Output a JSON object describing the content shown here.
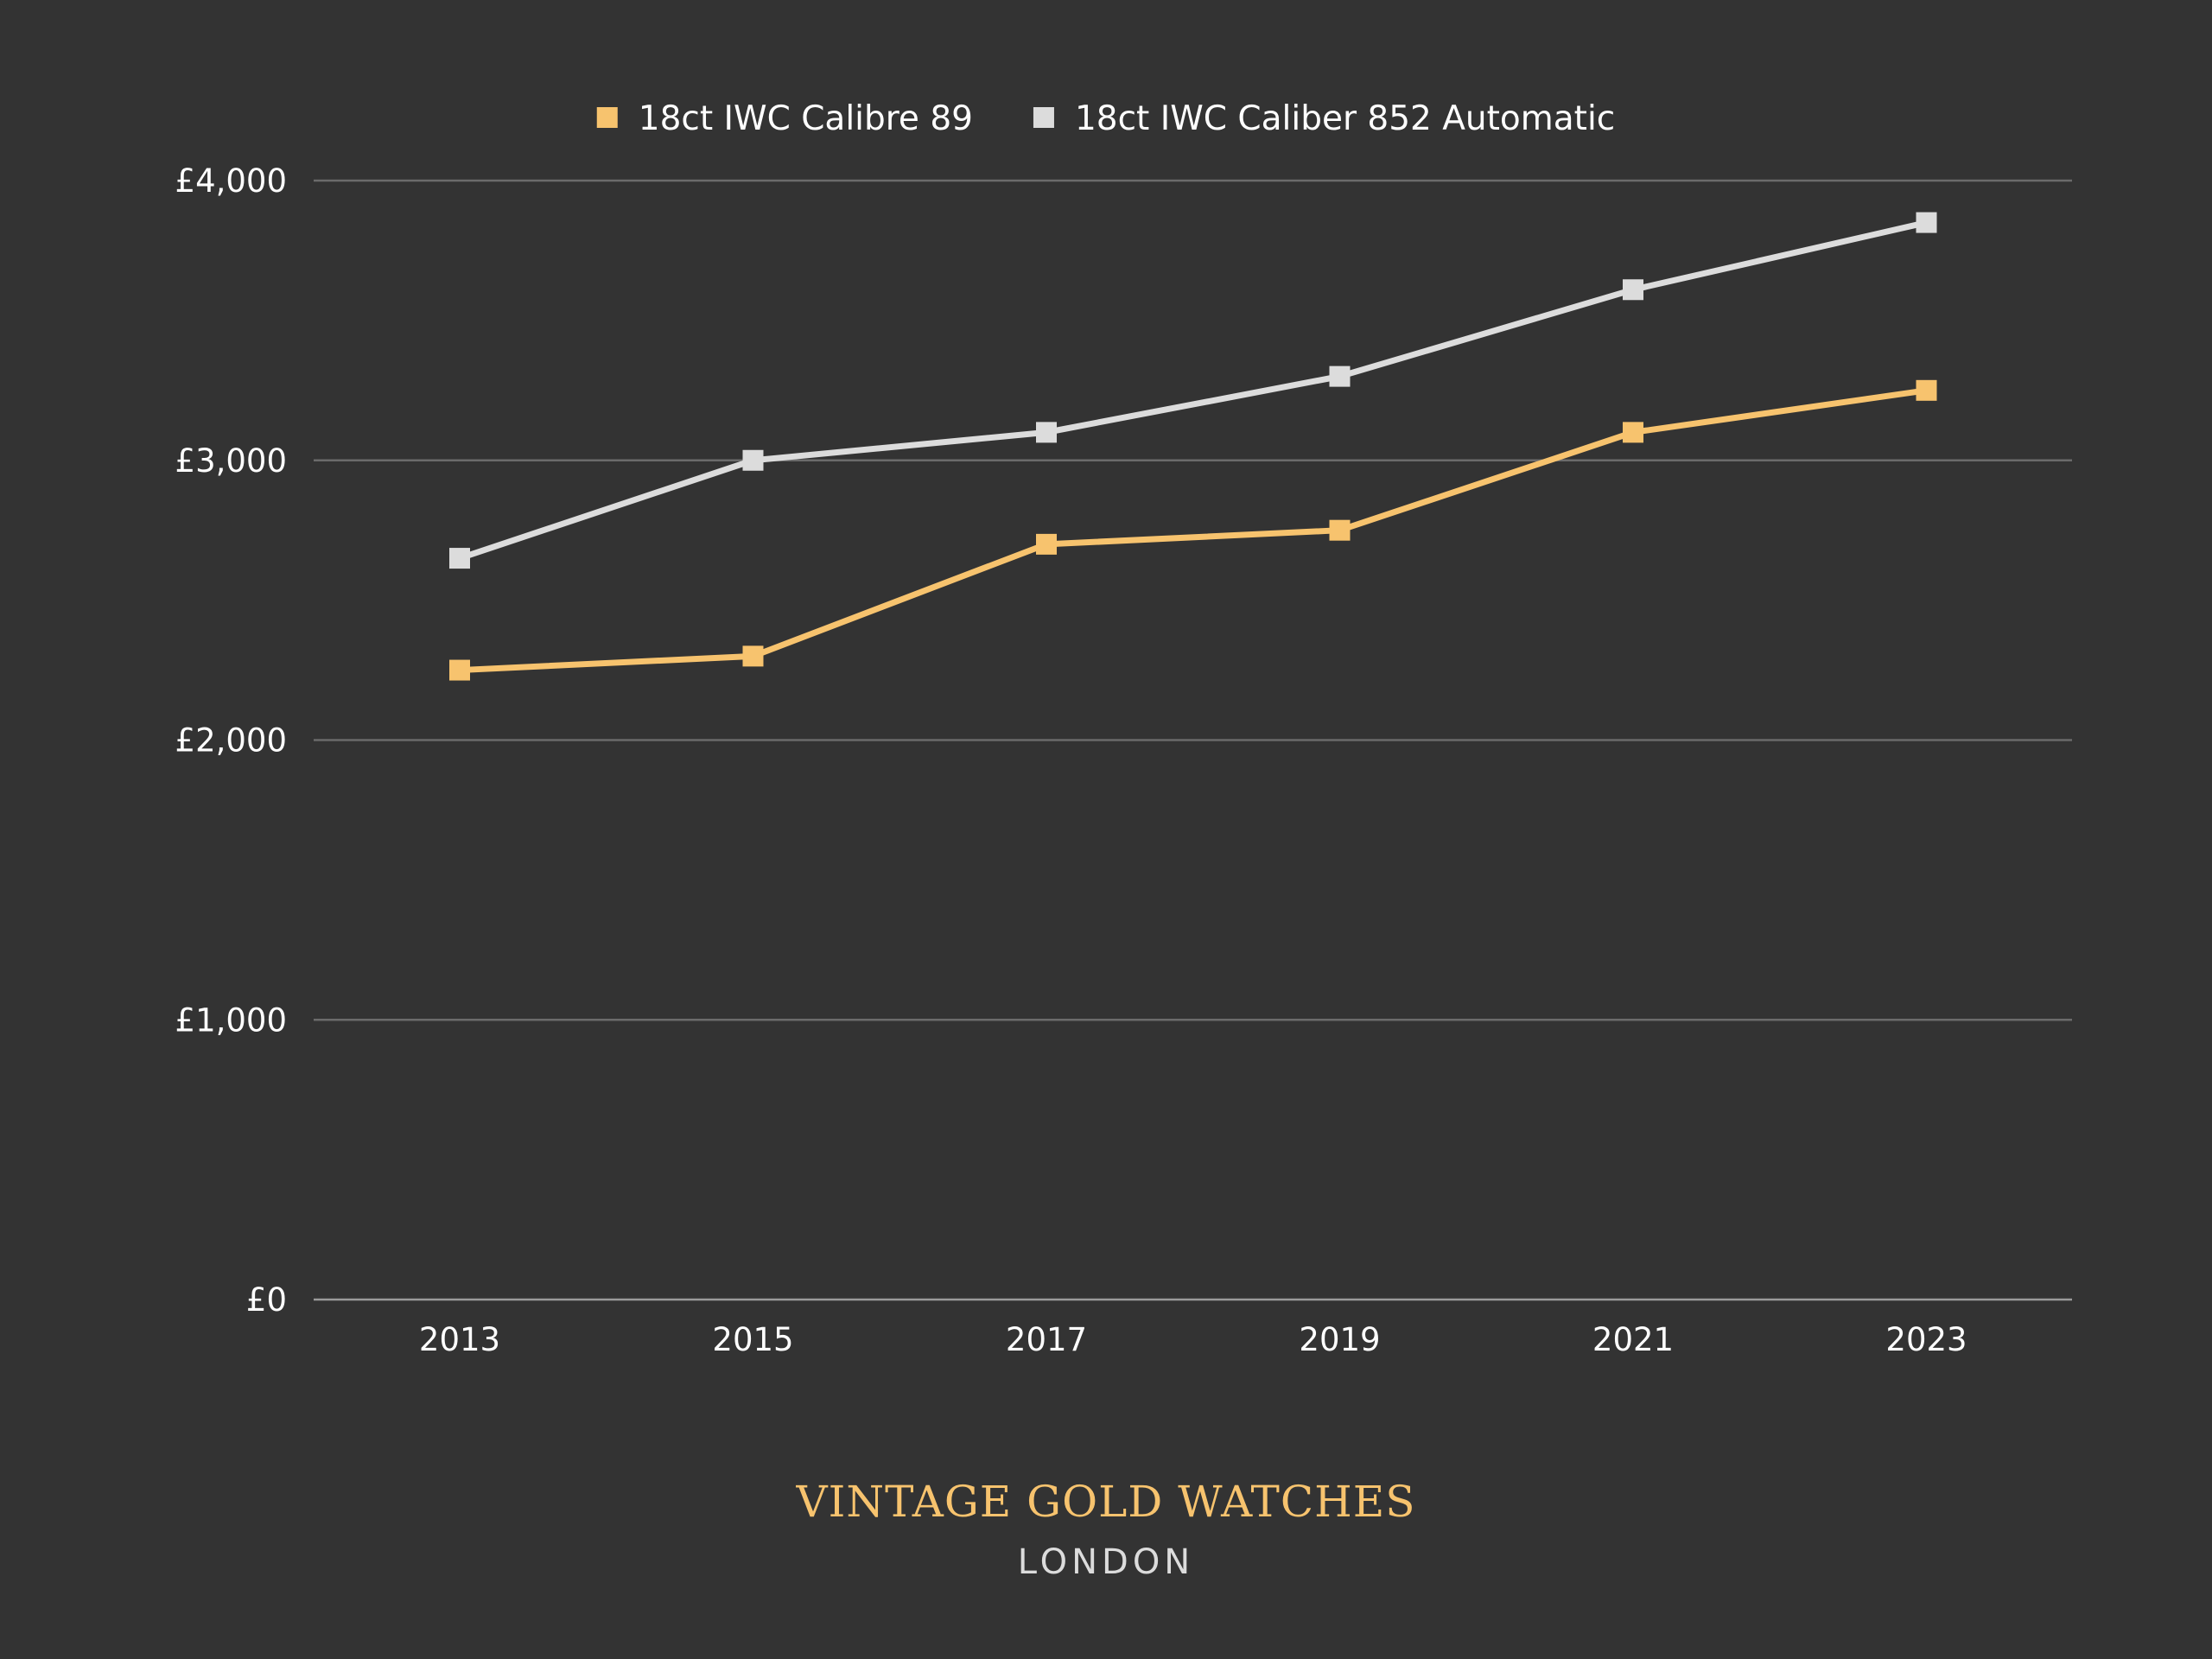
{
  "colors": {
    "background": "#333333",
    "grid": "#6b6b6b",
    "axis": "#9a9a9a",
    "text": "#ffffff",
    "gold": "#f7c36e",
    "silver": "#dcdcdc"
  },
  "brand": {
    "name": "VINTAGE GOLD WATCHES",
    "city": "LONDON"
  },
  "chart_data": {
    "type": "line",
    "title": "",
    "xlabel": "",
    "ylabel": "",
    "x": [
      "2013",
      "2015",
      "2017",
      "2019",
      "2021",
      "2023"
    ],
    "ylim": [
      0,
      4000
    ],
    "yticks": [
      0,
      1000,
      2000,
      3000,
      4000
    ],
    "ytick_labels": [
      "£0",
      "£1,000",
      "£2,000",
      "£3,000",
      "£4,000"
    ],
    "grid": true,
    "legend_position": "top-center",
    "marker": "square",
    "series": [
      {
        "name": "18ct IWC Calibre 89",
        "color": "#f7c36e",
        "values": [
          2250,
          2300,
          2700,
          2750,
          3100,
          3250
        ]
      },
      {
        "name": "18ct IWC Caliber 852 Automatic",
        "color": "#dcdcdc",
        "values": [
          2650,
          3000,
          3100,
          3300,
          3610,
          3850
        ]
      }
    ]
  }
}
